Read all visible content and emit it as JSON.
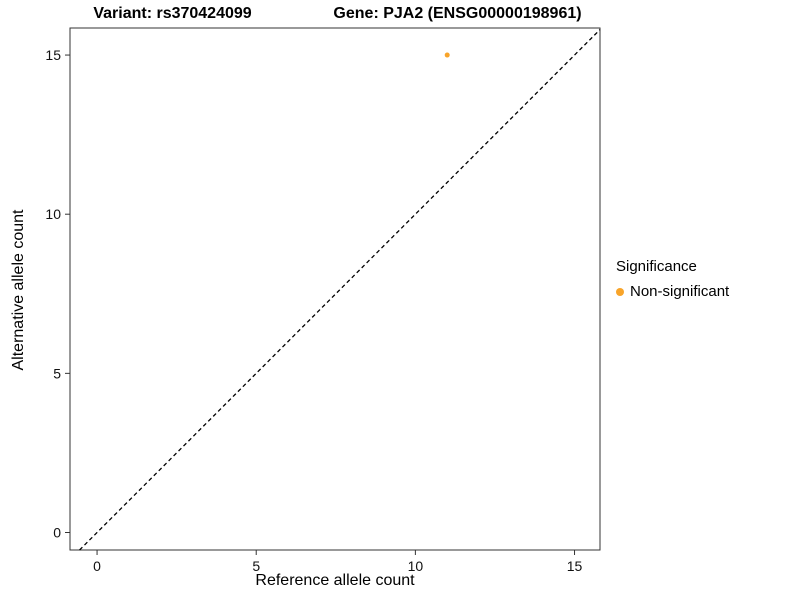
{
  "chart_data": {
    "type": "scatter",
    "title_left": "Variant: rs370424099",
    "title_right": "Gene: PJA2 (ENSG00000198961)",
    "xlabel": "Reference allele count",
    "ylabel": "Alternative allele count",
    "xlim": [
      -0.85,
      15.8
    ],
    "ylim": [
      -0.55,
      15.85
    ],
    "xticks": [
      0,
      5,
      10,
      15
    ],
    "yticks": [
      0,
      5,
      10,
      15
    ],
    "grid": false,
    "points": [
      {
        "x": 11,
        "y": 15,
        "series": "Non-significant"
      }
    ],
    "identity_line": {
      "style": "dashed",
      "color": "#000000"
    },
    "point_color": "#F8A42A",
    "panel_border_color": "#333333",
    "legend": {
      "title": "Significance",
      "position": "right",
      "entries": [
        {
          "label": "Non-significant",
          "color": "#F8A42A"
        }
      ]
    }
  }
}
